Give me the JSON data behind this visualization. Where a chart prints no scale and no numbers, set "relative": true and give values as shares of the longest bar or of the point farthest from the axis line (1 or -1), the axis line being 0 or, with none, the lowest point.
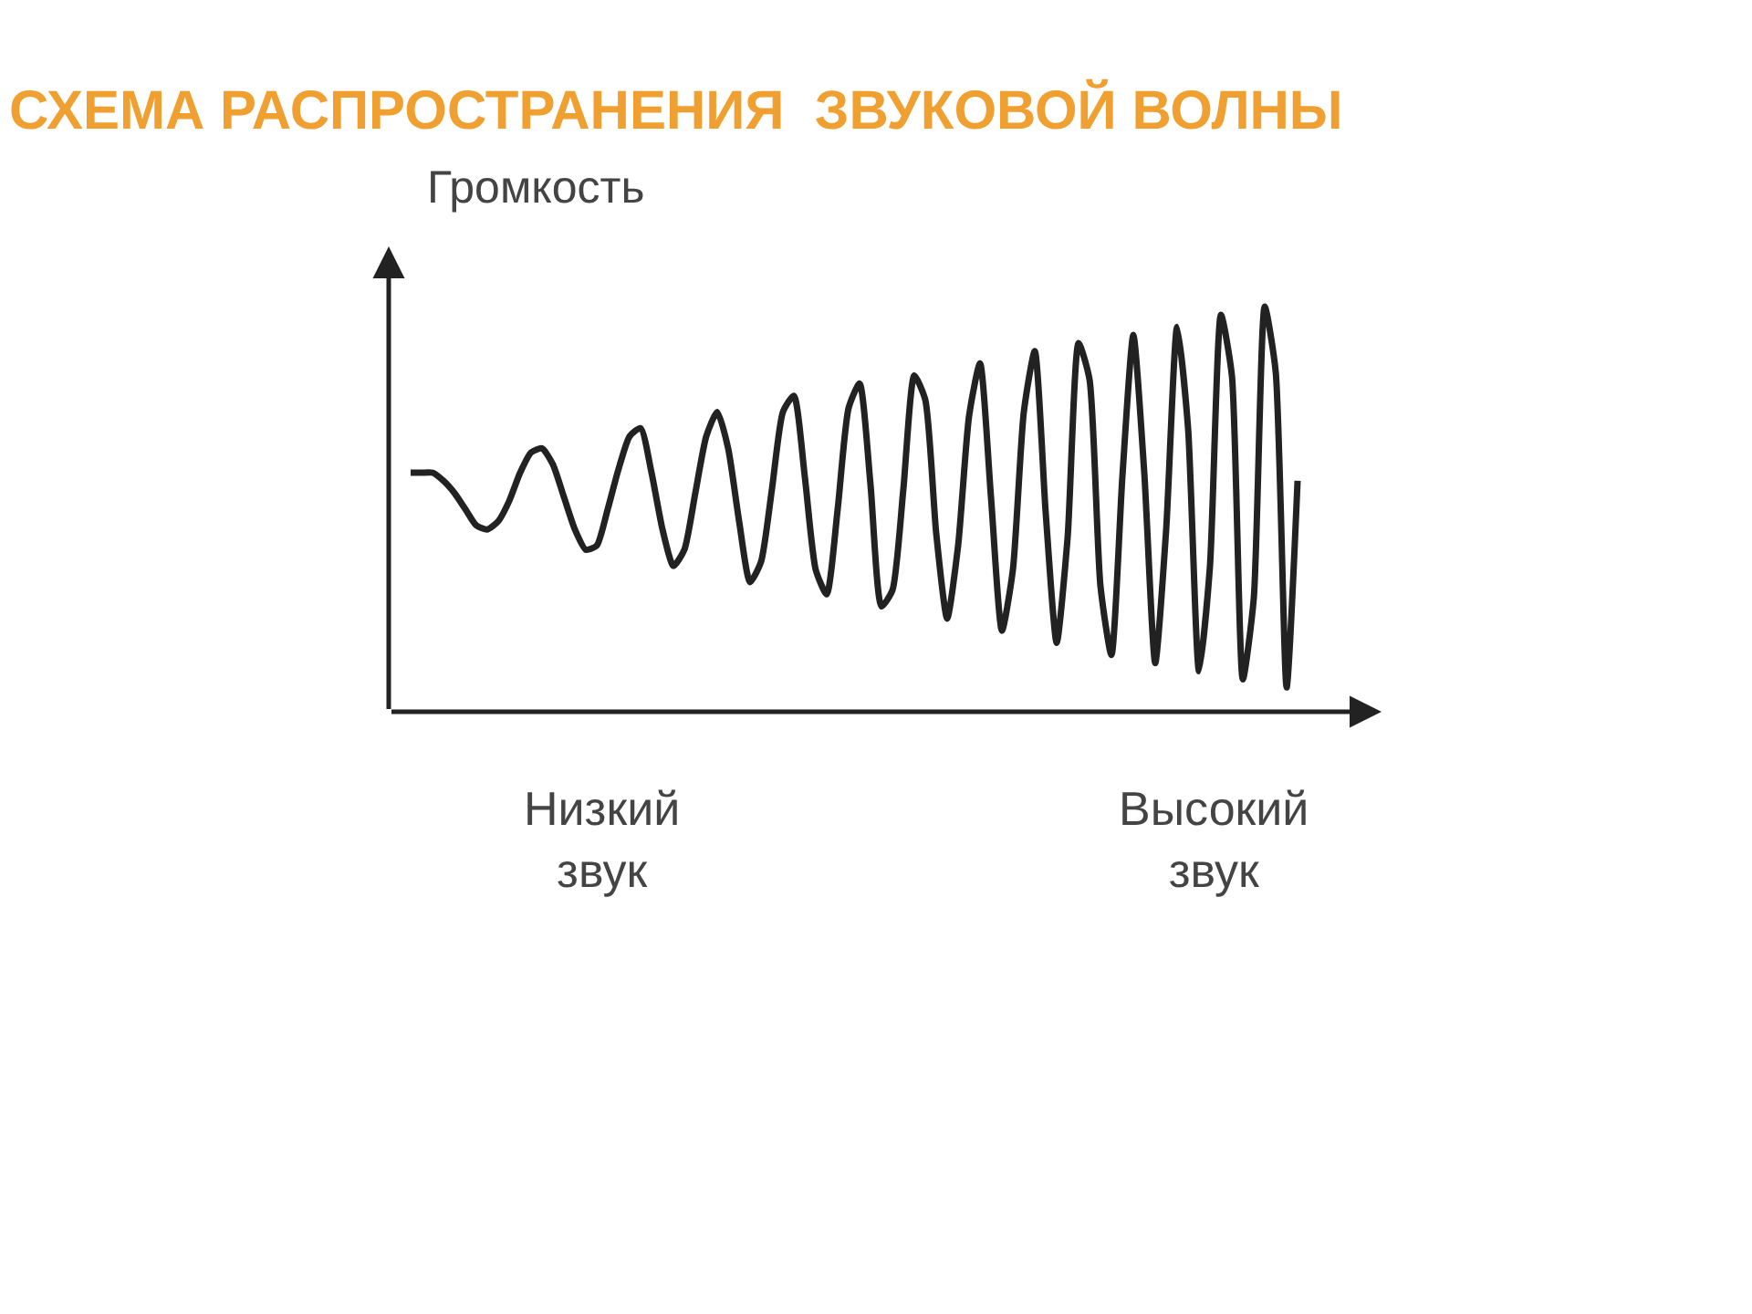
{
  "chart_data": {
    "type": "line",
    "title": "СХЕМА РАСПРОСТРАНЕНИЯ  ЗВУКОВОЙ ВОЛНЫ",
    "ylabel": "Громкость",
    "annotations": [
      "Низкий\nзвук",
      "Высокий\nзвук"
    ],
    "relative": true,
    "tick_labels": false,
    "marker": "none",
    "line_style": "solid",
    "categories": [
      null,
      null,
      null,
      null,
      null,
      null,
      null,
      null,
      null,
      null,
      null,
      null,
      null,
      null,
      null,
      null,
      null,
      null,
      null,
      null,
      null,
      null,
      null,
      null,
      null,
      null,
      null,
      null,
      null,
      null,
      null,
      null,
      null,
      null,
      null,
      null,
      null,
      null,
      null,
      null,
      null,
      null,
      null,
      null,
      null,
      null,
      null,
      null,
      null,
      null,
      null,
      null,
      null,
      null,
      null,
      null,
      null,
      null,
      null,
      null,
      null,
      null,
      null,
      null,
      null,
      null,
      null,
      null,
      null,
      null,
      null,
      null,
      null,
      null,
      null,
      null,
      null,
      null,
      null,
      null,
      null,
      null
    ],
    "series": [
      {
        "color": "#222222",
        "values": [
          0.59,
          0.59,
          0.59,
          0.57,
          0.54,
          0.5,
          0.46,
          0.45,
          0.47,
          0.52,
          0.59,
          0.64,
          0.65,
          0.61,
          0.53,
          0.45,
          0.4,
          0.41,
          0.5,
          0.6,
          0.68,
          0.7,
          0.59,
          0.45,
          0.36,
          0.4,
          0.54,
          0.68,
          0.74,
          0.65,
          0.47,
          0.32,
          0.37,
          0.55,
          0.74,
          0.78,
          0.58,
          0.35,
          0.29,
          0.5,
          0.75,
          0.81,
          0.56,
          0.26,
          0.3,
          0.55,
          0.83,
          0.77,
          0.44,
          0.23,
          0.41,
          0.73,
          0.86,
          0.53,
          0.2,
          0.35,
          0.74,
          0.89,
          0.49,
          0.17,
          0.43,
          0.91,
          0.82,
          0.31,
          0.14,
          0.58,
          0.93,
          0.59,
          0.12,
          0.45,
          0.95,
          0.7,
          0.1,
          0.36,
          0.98,
          0.83,
          0.08,
          0.28,
          1,
          0.84,
          0.06,
          0.57
        ]
      }
    ]
  }
}
